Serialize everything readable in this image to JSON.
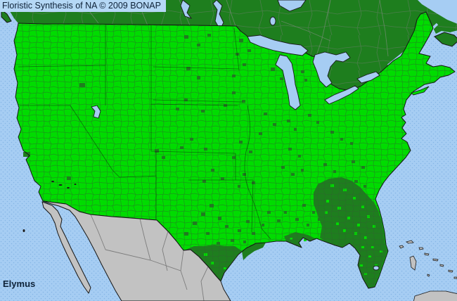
{
  "header": {
    "title": "Floristic Synthesis of NA © 2009 BONAP"
  },
  "footer": {
    "taxon_label": "Elymus"
  },
  "colors": {
    "water": "#A6CDF3",
    "water_dot": "#85B5E5",
    "county_present_green": "#00DC00",
    "state_present_dark_green": "#1E7E1E",
    "no_data_gray": "#C2C2C2",
    "titlebar_bg": "#B5D8F6",
    "text_dark": "#0E2238",
    "coastline": "#151515"
  },
  "map": {
    "taxon": "Elymus",
    "legend_semantics": {
      "bright_green": "present (county level)",
      "dark_green": "present (state/province level)",
      "gray": "outside synthesis area",
      "blue": "water"
    },
    "dark_county_marks": [
      [
        113,
        118,
        8,
        6
      ],
      [
        33,
        216,
        10,
        7
      ],
      [
        95,
        251,
        6,
        5
      ],
      [
        262,
        50,
        6,
        5
      ],
      [
        280,
        62,
        5,
        4
      ],
      [
        295,
        48,
        5,
        4
      ],
      [
        340,
        55,
        6,
        5
      ],
      [
        352,
        70,
        5,
        4
      ],
      [
        265,
        95,
        6,
        5
      ],
      [
        280,
        108,
        5,
        5
      ],
      [
        335,
        75,
        5,
        4
      ],
      [
        345,
        90,
        5,
        4
      ],
      [
        330,
        106,
        5,
        4
      ],
      [
        385,
        96,
        6,
        5
      ],
      [
        398,
        110,
        5,
        4
      ],
      [
        428,
        100,
        5,
        4
      ],
      [
        433,
        112,
        4,
        4
      ],
      [
        330,
        130,
        5,
        4
      ],
      [
        344,
        142,
        5,
        4
      ],
      [
        318,
        148,
        5,
        4
      ],
      [
        262,
        140,
        5,
        4
      ],
      [
        250,
        153,
        5,
        4
      ],
      [
        286,
        156,
        5,
        4
      ],
      [
        375,
        160,
        5,
        4
      ],
      [
        388,
        175,
        5,
        4
      ],
      [
        368,
        188,
        5,
        4
      ],
      [
        408,
        170,
        5,
        4
      ],
      [
        418,
        182,
        4,
        4
      ],
      [
        438,
        162,
        5,
        4
      ],
      [
        450,
        172,
        4,
        4
      ],
      [
        270,
        196,
        5,
        4
      ],
      [
        256,
        208,
        5,
        4
      ],
      [
        290,
        210,
        5,
        4
      ],
      [
        340,
        200,
        5,
        4
      ],
      [
        354,
        214,
        5,
        4
      ],
      [
        330,
        222,
        5,
        4
      ],
      [
        410,
        210,
        5,
        4
      ],
      [
        424,
        220,
        4,
        4
      ],
      [
        470,
        186,
        5,
        4
      ],
      [
        484,
        196,
        4,
        4
      ],
      [
        498,
        202,
        4,
        4
      ],
      [
        220,
        212,
        6,
        5
      ],
      [
        230,
        222,
        5,
        4
      ],
      [
        300,
        240,
        5,
        4
      ],
      [
        314,
        252,
        5,
        4
      ],
      [
        288,
        256,
        5,
        4
      ],
      [
        345,
        246,
        5,
        4
      ],
      [
        358,
        258,
        5,
        4
      ],
      [
        338,
        263,
        4,
        4
      ],
      [
        400,
        236,
        5,
        4
      ],
      [
        414,
        246,
        5,
        4
      ],
      [
        428,
        240,
        4,
        4
      ],
      [
        500,
        228,
        5,
        4
      ],
      [
        514,
        236,
        5,
        4
      ],
      [
        504,
        256,
        5,
        4
      ],
      [
        517,
        263,
        4,
        4
      ],
      [
        460,
        232,
        5,
        4
      ],
      [
        474,
        242,
        4,
        4
      ],
      [
        298,
        290,
        6,
        5
      ],
      [
        286,
        302,
        6,
        5
      ],
      [
        310,
        308,
        5,
        5
      ],
      [
        274,
        315,
        6,
        5
      ],
      [
        320,
        320,
        5,
        4
      ],
      [
        262,
        330,
        6,
        5
      ],
      [
        293,
        330,
        5,
        4
      ],
      [
        308,
        344,
        5,
        4
      ],
      [
        328,
        340,
        5,
        4
      ],
      [
        338,
        326,
        5,
        4
      ],
      [
        350,
        313,
        5,
        4
      ],
      [
        358,
        330,
        5,
        4
      ],
      [
        346,
        342,
        4,
        4
      ],
      [
        380,
        300,
        5,
        4
      ],
      [
        394,
        312,
        5,
        4
      ],
      [
        372,
        318,
        4,
        4
      ],
      [
        404,
        300,
        4,
        4
      ],
      [
        430,
        290,
        5,
        4
      ],
      [
        444,
        300,
        4,
        4
      ],
      [
        420,
        310,
        5,
        4
      ],
      [
        436,
        318,
        4,
        4
      ],
      [
        452,
        310,
        4,
        4
      ]
    ],
    "bright_county_marks": [
      [
        470,
        262,
        5,
        4
      ],
      [
        488,
        268,
        5,
        4
      ],
      [
        502,
        280,
        4,
        4
      ],
      [
        514,
        292,
        4,
        4
      ],
      [
        480,
        294,
        5,
        4
      ],
      [
        464,
        284,
        4,
        4
      ],
      [
        494,
        308,
        4,
        4
      ],
      [
        508,
        318,
        4,
        4
      ],
      [
        522,
        306,
        4,
        4
      ],
      [
        530,
        320,
        4,
        4
      ],
      [
        478,
        316,
        4,
        4
      ],
      [
        462,
        300,
        4,
        4
      ],
      [
        518,
        336,
        4,
        4
      ],
      [
        504,
        330,
        4,
        4
      ],
      [
        488,
        326,
        4,
        4
      ],
      [
        528,
        350,
        4,
        3
      ],
      [
        514,
        350,
        4,
        3
      ],
      [
        524,
        363,
        4,
        3
      ],
      [
        533,
        376,
        4,
        3
      ],
      [
        518,
        388,
        4,
        3
      ],
      [
        512,
        376,
        4,
        3
      ],
      [
        540,
        356,
        4,
        3
      ],
      [
        290,
        360,
        5,
        4
      ],
      [
        300,
        372,
        4,
        4
      ],
      [
        284,
        376,
        4,
        4
      ],
      [
        318,
        380,
        4,
        3
      ],
      [
        412,
        338,
        4,
        3
      ],
      [
        432,
        340,
        4,
        3
      ]
    ]
  }
}
